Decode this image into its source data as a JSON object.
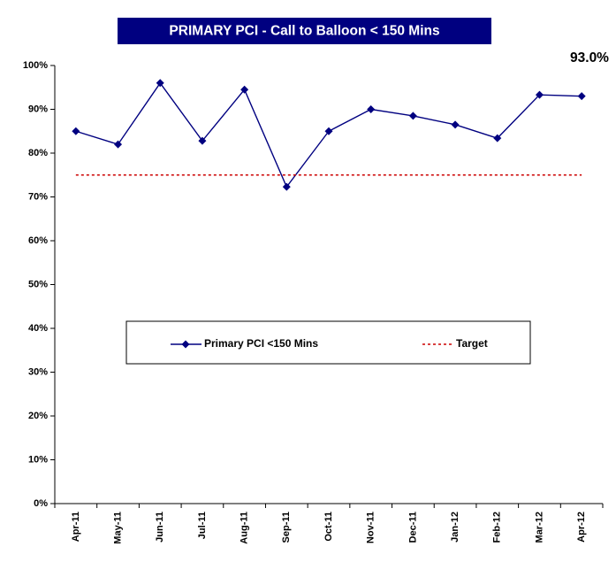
{
  "chart_data": {
    "type": "line",
    "title": "PRIMARY PCI - Call to Balloon < 150 Mins",
    "annotation": "93.0%",
    "categories": [
      "Apr-11",
      "May-11",
      "Jun-11",
      "Jul-11",
      "Aug-11",
      "Sep-11",
      "Oct-11",
      "Nov-11",
      "Dec-11",
      "Jan-12",
      "Feb-12",
      "Mar-12",
      "Apr-12"
    ],
    "series": [
      {
        "name": "Primary PCI <150 Mins",
        "color": "#000080",
        "style": "solid",
        "marker": "diamond",
        "values": [
          85,
          82,
          96,
          82.8,
          94.5,
          72.3,
          85,
          90,
          88.5,
          86.5,
          83.4,
          93.3,
          93
        ]
      },
      {
        "name": "Target",
        "color": "#cc0000",
        "style": "dotted",
        "values": [
          75,
          75,
          75,
          75,
          75,
          75,
          75,
          75,
          75,
          75,
          75,
          75,
          75
        ]
      }
    ],
    "ylim": [
      0,
      100
    ],
    "yticks": [
      {
        "value": 0,
        "label": "0%"
      },
      {
        "value": 10,
        "label": "10%"
      },
      {
        "value": 20,
        "label": "20%"
      },
      {
        "value": 30,
        "label": "30%"
      },
      {
        "value": 40,
        "label": "40%"
      },
      {
        "value": 50,
        "label": "50%"
      },
      {
        "value": 60,
        "label": "60%"
      },
      {
        "value": 70,
        "label": "70%"
      },
      {
        "value": 80,
        "label": "80%"
      },
      {
        "value": 90,
        "label": "90%"
      },
      {
        "value": 100,
        "label": "100%"
      }
    ],
    "grid": false,
    "legend": "center"
  }
}
